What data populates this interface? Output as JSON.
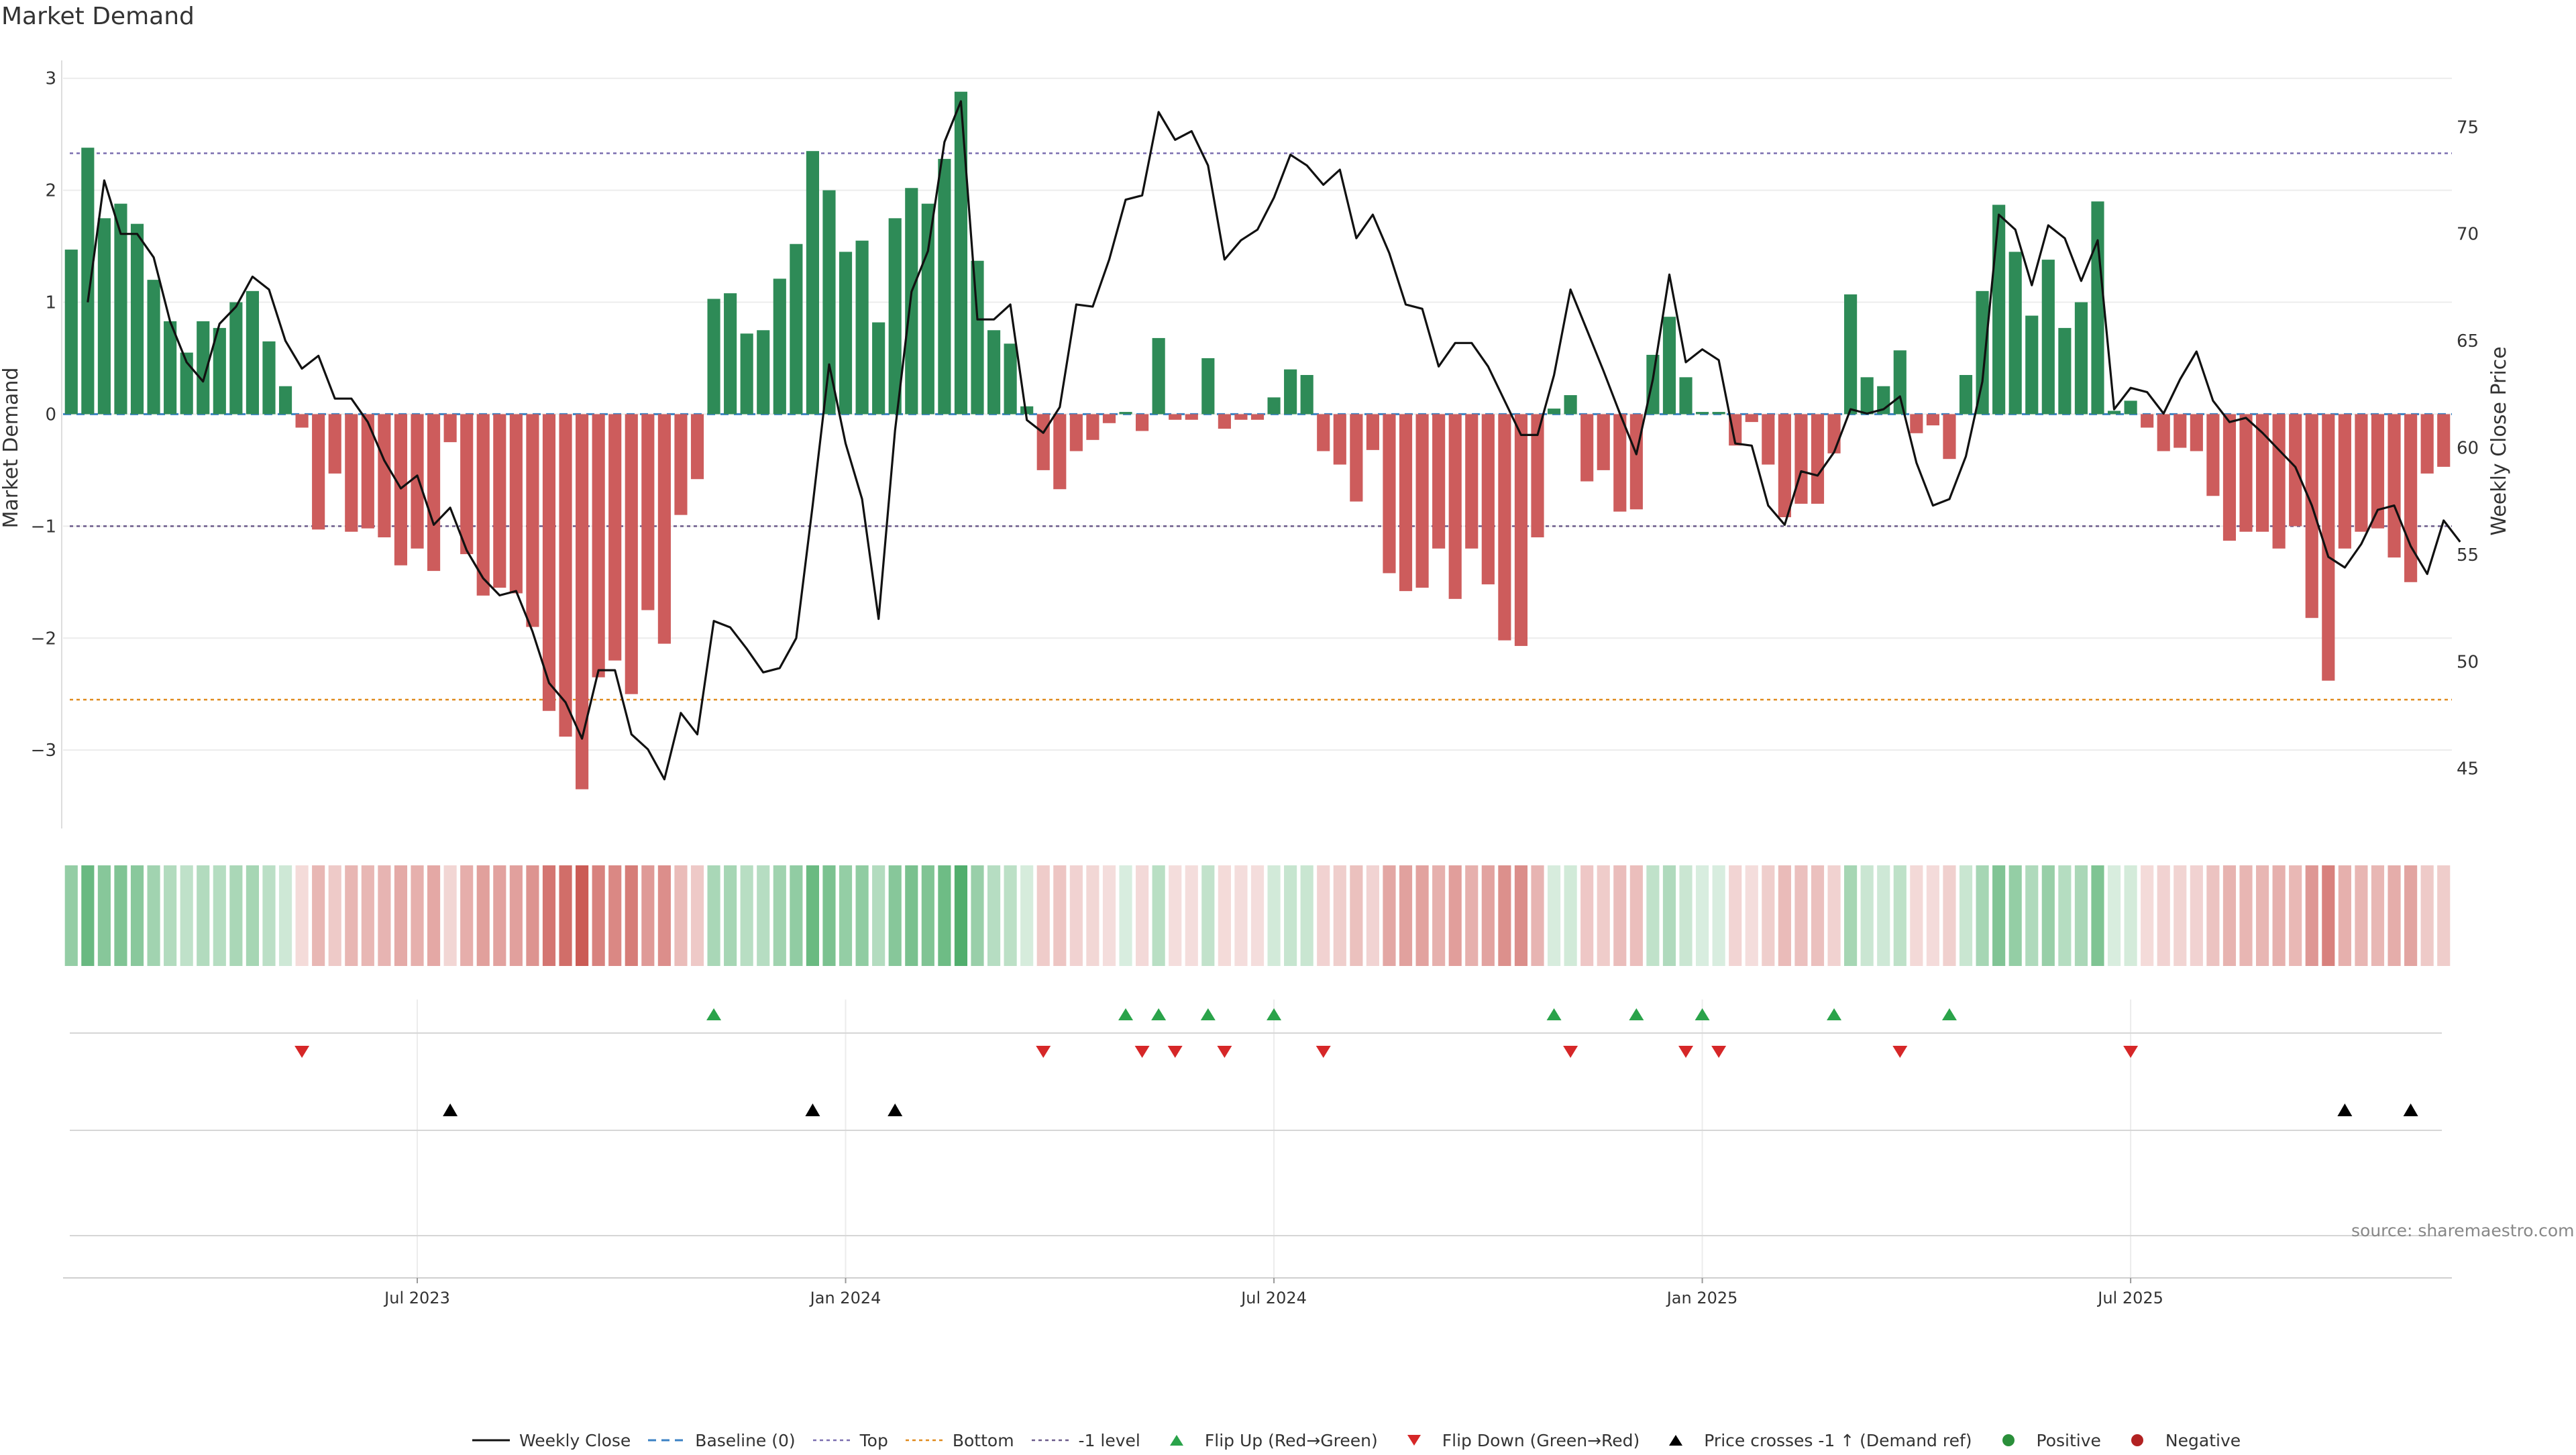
{
  "title": "Market Demand",
  "source": "source: sharemaestro.com",
  "colors": {
    "positive": "#2e8b57",
    "negative": "#cd5c5c",
    "price": "#111111",
    "top": "#7b6fb0",
    "bottom": "#e08a1e",
    "minus_one": "#6b5a8a",
    "baseline": "#3b82c4",
    "flip_up": "#2aa34a",
    "flip_down": "#d62728",
    "cross": "#000000",
    "heat_pos": "#2e9e4f",
    "heat_neg": "#c8504a"
  },
  "legend": [
    {
      "key": "weekly_close",
      "label": "Weekly Close"
    },
    {
      "key": "baseline",
      "label": "Baseline (0)"
    },
    {
      "key": "top",
      "label": "Top"
    },
    {
      "key": "bottom",
      "label": "Bottom"
    },
    {
      "key": "minus_one",
      "label": "-1 level"
    },
    {
      "key": "flip_up",
      "label": "Flip Up (Red→Green)"
    },
    {
      "key": "flip_down",
      "label": "Flip Down (Green→Red)"
    },
    {
      "key": "cross",
      "label": "Price crosses -1 ↑ (Demand ref)"
    },
    {
      "key": "positive",
      "label": "Positive"
    },
    {
      "key": "negative",
      "label": "Negative"
    }
  ],
  "chart_data": {
    "type": "bar",
    "title": "Market Demand",
    "ylabel": "Market Demand",
    "y2label": "Weekly Close Price",
    "ylim": [
      -3.7,
      3.1
    ],
    "y2lim": [
      42.2,
      77.8
    ],
    "yticks": [
      3,
      2,
      1,
      0,
      -1,
      -2,
      -3
    ],
    "yticklabels": [
      "3",
      "2",
      "1",
      "0",
      "−1",
      "−2",
      "−3"
    ],
    "y2ticks": [
      75,
      70,
      65,
      60,
      55,
      50,
      45
    ],
    "y2ticklabels": [
      "75",
      "70",
      "65",
      "60",
      "55",
      "50",
      "45"
    ],
    "x_start_week": 0,
    "x_end_week": 143,
    "xticks": [
      21.5,
      47.5,
      73.5,
      99.5,
      125.5
    ],
    "xticklabels": [
      "Jul 2023",
      "Jan 2024",
      "Jul 2024",
      "Jan 2025",
      "Jul 2025"
    ],
    "reference_lines": {
      "top": 2.33,
      "bottom": -2.55,
      "minus_one": -1.0,
      "baseline": 0
    },
    "demand": [
      1.47,
      2.38,
      1.75,
      1.88,
      1.7,
      1.2,
      0.83,
      0.55,
      0.83,
      0.77,
      1.0,
      1.1,
      0.65,
      0.25,
      -0.12,
      -1.03,
      -0.53,
      -1.05,
      -1.02,
      -1.1,
      -1.35,
      -1.2,
      -1.4,
      -0.25,
      -1.25,
      -1.62,
      -1.55,
      -1.6,
      -1.9,
      -2.65,
      -2.88,
      -3.35,
      -2.35,
      -2.2,
      -2.5,
      -1.75,
      -2.05,
      -0.9,
      -0.58,
      1.03,
      1.08,
      0.72,
      0.75,
      1.21,
      1.52,
      2.35,
      2.0,
      1.45,
      1.55,
      0.82,
      1.75,
      2.02,
      1.88,
      2.28,
      2.88,
      1.37,
      0.75,
      0.63,
      0.07,
      -0.5,
      -0.67,
      -0.33,
      -0.23,
      -0.08,
      0.02,
      -0.15,
      0.68,
      -0.05,
      -0.05,
      0.5,
      -0.13,
      -0.05,
      -0.05,
      0.15,
      0.4,
      0.35,
      -0.33,
      -0.45,
      -0.78,
      -0.32,
      -1.42,
      -1.58,
      -1.55,
      -1.2,
      -1.65,
      -1.2,
      -1.52,
      -2.02,
      -2.07,
      -1.1,
      0.05,
      0.17,
      -0.6,
      -0.5,
      -0.87,
      -0.85,
      0.53,
      0.87,
      0.33,
      0.02,
      0.02,
      -0.28,
      -0.07,
      -0.45,
      -0.92,
      -0.8,
      -0.8,
      -0.35,
      1.07,
      0.33,
      0.25,
      0.57,
      -0.17,
      -0.1,
      -0.4,
      0.35,
      1.1,
      1.87,
      1.45,
      0.88,
      1.38,
      0.77,
      1.0,
      1.9,
      0.03,
      0.12,
      -0.12,
      -0.33,
      -0.3,
      -0.33,
      -0.73,
      -1.13,
      -1.05,
      -1.05,
      -1.2,
      -1.0,
      -1.82,
      -2.38,
      -1.2,
      -1.05,
      -1.02,
      -1.28,
      -1.5,
      -0.53,
      -0.47
    ],
    "weekly_close": [
      null,
      66.8,
      72.5,
      70.0,
      70.0,
      68.9,
      65.9,
      64.0,
      63.1,
      65.8,
      66.6,
      68.0,
      67.4,
      65.0,
      63.7,
      64.3,
      62.3,
      62.3,
      61.2,
      59.4,
      58.1,
      58.7,
      56.4,
      57.2,
      55.2,
      53.9,
      53.1,
      53.3,
      51.4,
      49.0,
      48.1,
      46.4,
      49.6,
      49.6,
      46.6,
      45.9,
      44.5,
      47.6,
      46.6,
      51.9,
      51.6,
      50.6,
      49.5,
      49.7,
      51.1,
      57.3,
      63.9,
      60.2,
      57.6,
      52.0,
      60.8,
      67.3,
      69.2,
      74.3,
      76.2,
      66.0,
      66.0,
      66.7,
      61.3,
      60.7,
      61.9,
      66.7,
      66.6,
      68.8,
      71.6,
      71.8,
      75.7,
      74.4,
      74.8,
      73.2,
      68.8,
      69.7,
      70.2,
      71.7,
      73.7,
      73.2,
      72.3,
      73.0,
      69.8,
      70.9,
      69.1,
      66.7,
      66.5,
      63.8,
      64.9,
      64.9,
      63.8,
      62.2,
      60.6,
      60.6,
      63.4,
      67.4,
      65.5,
      63.6,
      61.6,
      59.7,
      63.2,
      68.1,
      64.0,
      64.6,
      64.1,
      60.2,
      60.1,
      57.3,
      56.4,
      58.9,
      58.7,
      59.8,
      61.8,
      61.6,
      61.8,
      62.4,
      59.3,
      57.3,
      57.6,
      59.6,
      63.1,
      70.9,
      70.2,
      67.6,
      70.4,
      69.8,
      67.8,
      69.7,
      61.8,
      62.8,
      62.6,
      61.6,
      63.2,
      64.5,
      62.2,
      61.2,
      61.4,
      60.7,
      59.9,
      59.1,
      57.3,
      54.9,
      54.4,
      55.5,
      57.1,
      57.3,
      55.4,
      54.1,
      56.6,
      55.6
    ]
  },
  "markers": {
    "flip_up": [
      39,
      64,
      66,
      69,
      73,
      90,
      95,
      99,
      107,
      114
    ],
    "flip_down": [
      14,
      59,
      65,
      67,
      70,
      76,
      91,
      98,
      100,
      111,
      125
    ],
    "price_cross": [
      23,
      45,
      50,
      138,
      142
    ]
  }
}
